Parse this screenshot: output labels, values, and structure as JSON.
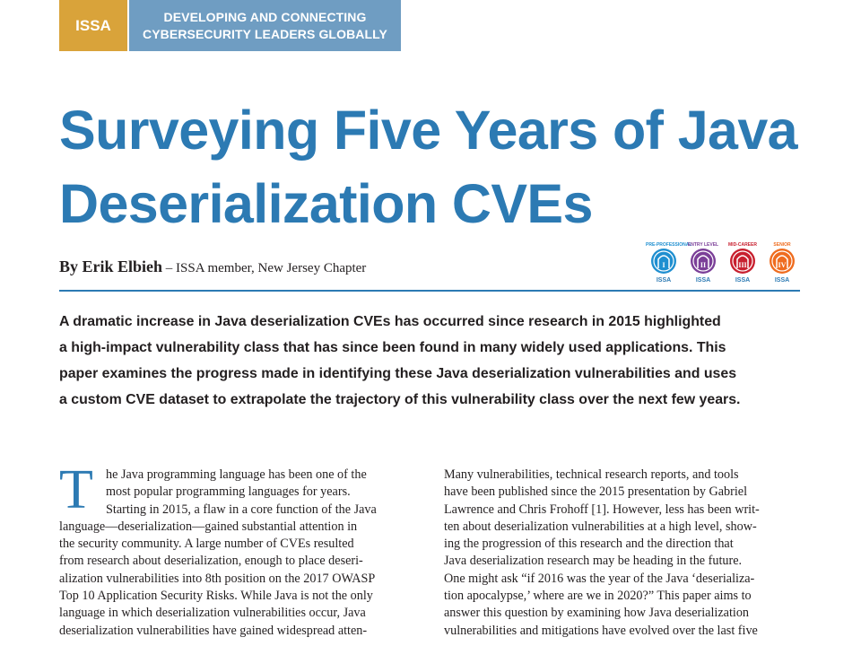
{
  "header": {
    "org": "ISSA",
    "tagline_line1": "DEVELOPING AND CONNECTING",
    "tagline_line2": "CYBERSECURITY LEADERS GLOBALLY"
  },
  "article": {
    "title_line1": "Surveying Five Years of Java",
    "title_line2": "Deserialization CVEs",
    "author": "By Erik Elbieh",
    "affiliation": " – ISSA member, New Jersey Chapter"
  },
  "badges": [
    {
      "label": "PRE-PROFESSIONAL",
      "color": "#1f8fd0",
      "symbol": "I",
      "issa": "ISSA"
    },
    {
      "label": "ENTRY LEVEL",
      "color": "#7b3f98",
      "symbol": "II",
      "issa": "ISSA"
    },
    {
      "label": "MID-CAREER",
      "color": "#c8202f",
      "symbol": "III",
      "issa": "ISSA"
    },
    {
      "label": "SENIOR",
      "color": "#ef6c1f",
      "symbol": "IV",
      "issa": "ISSA"
    }
  ],
  "abstract_lines": [
    "A dramatic increase in Java deserialization CVEs has occurred since research in 2015 highlighted",
    "a high-impact vulnerability class that has since been found in many widely used applications. This",
    "paper examines the progress made in identifying these Java deserialization vulnerabilities and uses",
    "a custom CVE dataset to extrapolate the trajectory of this vulnerability class over the next few years."
  ],
  "body": {
    "dropcap": "T",
    "left_lines": [
      "he Java programming language has been one of the",
      "most popular programming languages for years.",
      "Starting in 2015, a flaw in a core function of the Java",
      "language—deserialization—gained substantial attention in",
      "the security community. A large number of CVEs resulted",
      "from research about deserialization, enough to place deseri-",
      "alization vulnerabilities into 8th position on the 2017 OWASP",
      "Top 10 Application Security Risks. While Java is not the only",
      "language in which deserialization vulnerabilities occur, Java",
      "deserialization vulnerabilities have gained widespread atten-"
    ],
    "right_lines": [
      "Many vulnerabilities, technical research reports, and tools",
      "have been published since the 2015 presentation by Gabriel",
      "Lawrence and Chris Frohoff [1]. However, less has been writ-",
      "ten about deserialization vulnerabilities at a high level, show-",
      "ing the progression of this research and the direction that",
      "Java deserialization research may be heading in the future.",
      "One might ask “if 2016 was the year of the Java ‘deserializa-",
      "tion apocalypse,’ where are we in 2020?” This paper aims to",
      "answer this question by examining how Java deserialization",
      "vulnerabilities and mitigations have evolved over the last five"
    ]
  }
}
